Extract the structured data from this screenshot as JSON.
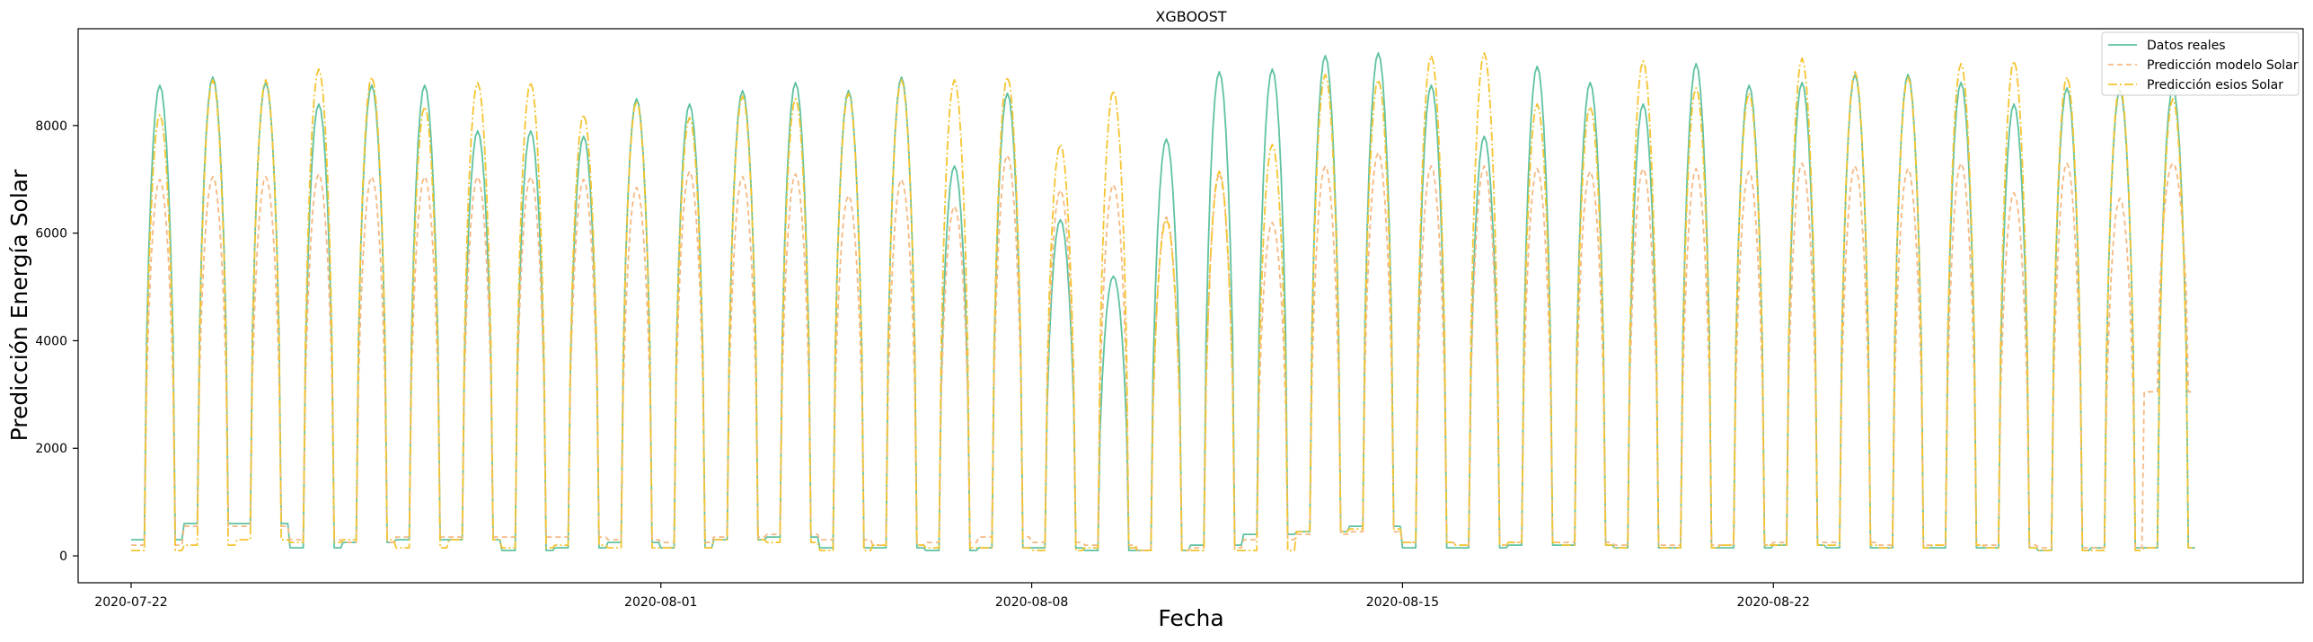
{
  "chart_data": {
    "type": "line",
    "title": "XGBOOST",
    "xlabel": "Fecha",
    "ylabel": "Predicción Energía Solar",
    "x_start": "2020-07-22",
    "x_end": "2020-08-30",
    "xlim": [
      "2020-07-21 00:00",
      "2020-09-01 00:00"
    ],
    "ylim": [
      -500,
      9800
    ],
    "x_ticks": [
      "2020-07-22",
      "2020-08-01",
      "2020-08-08",
      "2020-08-15",
      "2020-08-22"
    ],
    "y_ticks": [
      0,
      2000,
      4000,
      6000,
      8000
    ],
    "grid": false,
    "legend_position": "top-right",
    "series": [
      {
        "name": "Datos reales",
        "color": "#5fc2a0",
        "dash": "solid",
        "daily_peak": [
          8750,
          8900,
          8800,
          8400,
          8750,
          8750,
          7900,
          7900,
          7800,
          8500,
          8400,
          8650,
          8800,
          8650,
          8900,
          7250,
          8600,
          6250,
          5200,
          7750,
          9000,
          9050,
          9300,
          9350,
          8750,
          7800,
          9100,
          8800,
          8400,
          9150,
          8750,
          8800,
          8950,
          8950,
          8800,
          8400,
          8700,
          8650,
          8700
        ],
        "daily_low": [
          300,
          600,
          600,
          150,
          250,
          300,
          300,
          100,
          150,
          250,
          150,
          300,
          350,
          150,
          150,
          100,
          150,
          150,
          100,
          100,
          200,
          400,
          450,
          550,
          150,
          150,
          200,
          200,
          150,
          150,
          150,
          200,
          150,
          150,
          150,
          150,
          100,
          150,
          150
        ]
      },
      {
        "name": "Predicción modelo Solar",
        "color": "#f5b983",
        "dash": "dashed",
        "daily_peak": [
          7000,
          7050,
          7050,
          7100,
          7050,
          7050,
          7050,
          7050,
          7000,
          6850,
          7150,
          7050,
          7100,
          6700,
          7000,
          6500,
          7450,
          6800,
          6900,
          6300,
          7100,
          6200,
          7250,
          7500,
          7250,
          7250,
          7200,
          7150,
          7200,
          7200,
          7150,
          7300,
          7250,
          7200,
          7300,
          6750,
          7300,
          6650,
          7300
        ],
        "daily_low": [
          200,
          550,
          550,
          300,
          250,
          350,
          350,
          350,
          350,
          300,
          250,
          350,
          400,
          300,
          200,
          250,
          350,
          250,
          200,
          100,
          150,
          300,
          400,
          450,
          250,
          200,
          250,
          250,
          200,
          200,
          200,
          250,
          250,
          200,
          200,
          200,
          150,
          150,
          3050
        ]
      },
      {
        "name": "Predicción esios Solar",
        "color": "#f4c430",
        "dash": "dashdot",
        "daily_peak": [
          8200,
          8850,
          8850,
          9050,
          8900,
          8350,
          8800,
          8800,
          8200,
          8450,
          8150,
          8550,
          8500,
          8600,
          8850,
          8850,
          8900,
          7650,
          8650,
          6250,
          7150,
          7650,
          8950,
          8850,
          9300,
          9350,
          8400,
          8350,
          9200,
          8700,
          8600,
          9250,
          9000,
          8900,
          9150,
          9200,
          8900,
          8750,
          8500
        ],
        "daily_low": [
          100,
          200,
          300,
          250,
          300,
          150,
          300,
          150,
          200,
          150,
          150,
          300,
          250,
          100,
          200,
          150,
          150,
          100,
          150,
          100,
          100,
          100,
          450,
          500,
          250,
          200,
          250,
          200,
          150,
          150,
          200,
          200,
          200,
          150,
          200,
          150,
          100,
          100,
          150
        ]
      }
    ]
  }
}
